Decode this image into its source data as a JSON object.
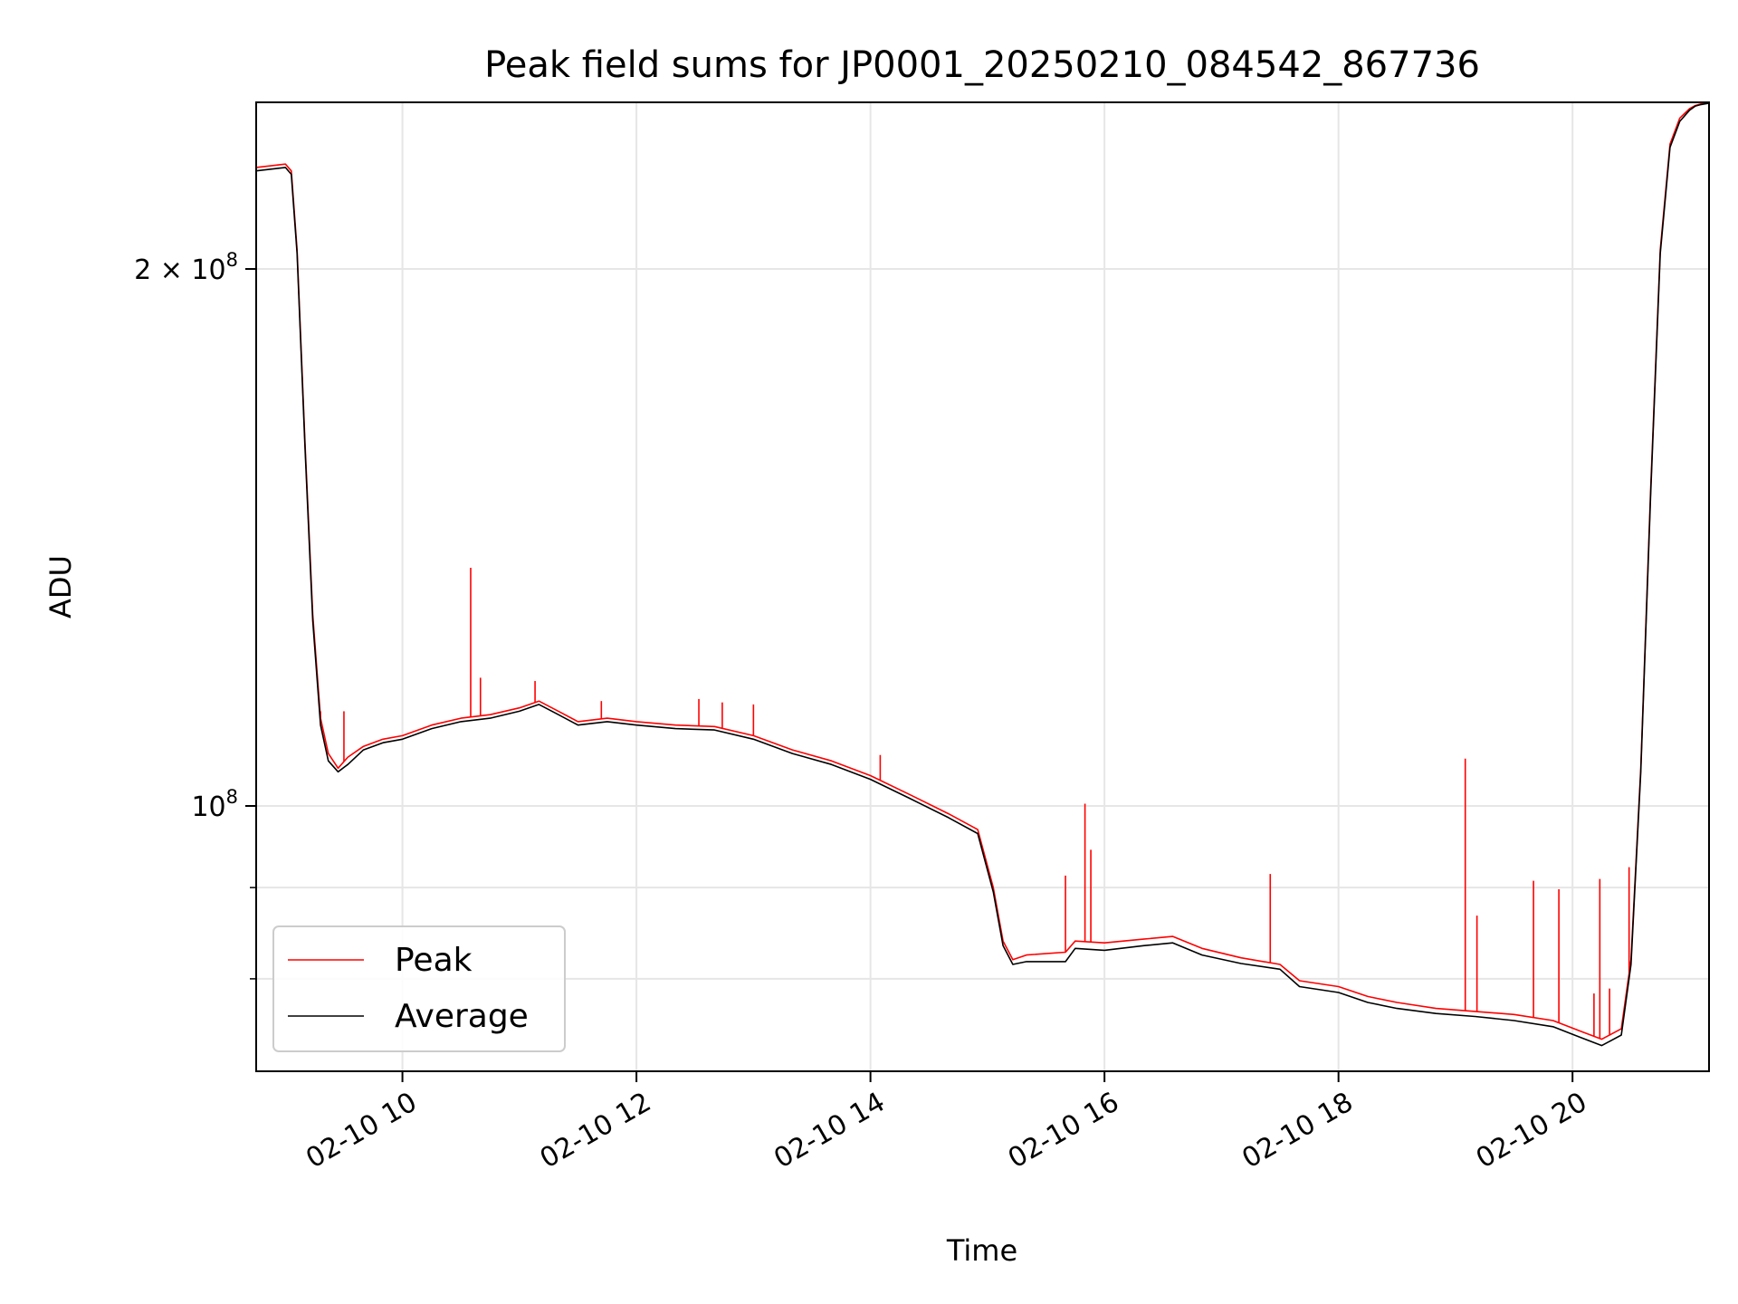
{
  "chart_data": {
    "type": "line",
    "title": "Peak field sums for JP0001_20250210_084542_867736",
    "xlabel": "Time",
    "ylabel": "ADU",
    "y_scale": "log",
    "xlim": [
      "02-10 08:45",
      "02-10 21:10"
    ],
    "ylim": [
      71000000,
      248000000
    ],
    "grid": true,
    "legend_position": "lower-left",
    "x_ticks": [
      {
        "value": "02-10 10:00",
        "label": "02-10 10"
      },
      {
        "value": "02-10 12:00",
        "label": "02-10 12"
      },
      {
        "value": "02-10 14:00",
        "label": "02-10 14"
      },
      {
        "value": "02-10 16:00",
        "label": "02-10 16"
      },
      {
        "value": "02-10 18:00",
        "label": "02-10 18"
      },
      {
        "value": "02-10 20:00",
        "label": "02-10 20"
      }
    ],
    "y_ticks": [
      {
        "value": 100000000,
        "base": "10",
        "exp": "8",
        "mantissa": ""
      },
      {
        "value": 200000000,
        "base": "10",
        "exp": "8",
        "mantissa": "2 × "
      }
    ],
    "y_minor_ticks": [
      80000000,
      90000000
    ],
    "series": [
      {
        "name": "Peak",
        "color": "#ff0000",
        "x": [
          "02-10 08:45",
          "02-10 09:00",
          "02-10 09:03",
          "02-10 09:06",
          "02-10 09:10",
          "02-10 09:14",
          "02-10 09:18",
          "02-10 09:22",
          "02-10 09:27",
          "02-10 09:32",
          "02-10 09:40",
          "02-10 09:50",
          "02-10 10:00",
          "02-10 10:15",
          "02-10 10:30",
          "02-10 10:45",
          "02-10 11:00",
          "02-10 11:10",
          "02-10 11:20",
          "02-10 11:30",
          "02-10 11:45",
          "02-10 12:00",
          "02-10 12:20",
          "02-10 12:40",
          "02-10 13:00",
          "02-10 13:20",
          "02-10 13:40",
          "02-10 14:00",
          "02-10 14:20",
          "02-10 14:40",
          "02-10 14:55",
          "02-10 15:03",
          "02-10 15:08",
          "02-10 15:13",
          "02-10 15:20",
          "02-10 15:40",
          "02-10 15:45",
          "02-10 16:00",
          "02-10 16:20",
          "02-10 16:35",
          "02-10 16:50",
          "02-10 17:10",
          "02-10 17:30",
          "02-10 17:40",
          "02-10 18:00",
          "02-10 18:15",
          "02-10 18:30",
          "02-10 18:50",
          "02-10 19:10",
          "02-10 19:30",
          "02-10 19:50",
          "02-10 20:05",
          "02-10 20:15",
          "02-10 20:20",
          "02-10 20:25",
          "02-10 20:30",
          "02-10 20:35",
          "02-10 20:40",
          "02-10 20:45",
          "02-10 20:50",
          "02-10 20:55",
          "02-10 21:00",
          "02-10 21:03",
          "02-10 21:06",
          "02-10 21:10"
        ],
        "y": [
          228000000,
          229000000,
          227000000,
          205000000,
          160000000,
          128000000,
          112000000,
          107000000,
          105000000,
          106500000,
          108000000,
          109000000,
          109500000,
          111000000,
          112000000,
          112500000,
          113500000,
          114500000,
          113000000,
          111500000,
          112000000,
          111500000,
          111000000,
          110800000,
          109500000,
          107500000,
          106000000,
          104000000,
          101500000,
          99000000,
          97000000,
          90000000,
          84000000,
          82000000,
          82500000,
          82800000,
          84000000,
          83800000,
          84200000,
          84500000,
          83200000,
          82200000,
          81500000,
          79800000,
          79200000,
          78200000,
          77600000,
          77000000,
          76700000,
          76400000,
          75800000,
          74700000,
          74000000,
          74500000,
          75000000,
          82000000,
          105000000,
          150000000,
          205000000,
          235000000,
          243000000,
          246000000,
          247000000,
          247500000,
          247800000
        ],
        "spikes": [
          {
            "x": "02-10 09:18",
            "y": 113000000
          },
          {
            "x": "02-10 09:30",
            "y": 113000000
          },
          {
            "x": "02-10 10:35",
            "y": 136000000
          },
          {
            "x": "02-10 10:40",
            "y": 118000000
          },
          {
            "x": "02-10 11:08",
            "y": 117500000
          },
          {
            "x": "02-10 11:42",
            "y": 114500000
          },
          {
            "x": "02-10 12:32",
            "y": 114800000
          },
          {
            "x": "02-10 12:44",
            "y": 114300000
          },
          {
            "x": "02-10 13:00",
            "y": 114000000
          },
          {
            "x": "02-10 14:05",
            "y": 106800000
          },
          {
            "x": "02-10 15:40",
            "y": 91400000
          },
          {
            "x": "02-10 15:50",
            "y": 100300000
          },
          {
            "x": "02-10 15:53",
            "y": 94500000
          },
          {
            "x": "02-10 17:25",
            "y": 91600000
          },
          {
            "x": "02-10 19:05",
            "y": 106300000
          },
          {
            "x": "02-10 19:11",
            "y": 86800000
          },
          {
            "x": "02-10 19:40",
            "y": 90800000
          },
          {
            "x": "02-10 19:53",
            "y": 89800000
          },
          {
            "x": "02-10 20:11",
            "y": 78500000
          },
          {
            "x": "02-10 20:14",
            "y": 91000000
          },
          {
            "x": "02-10 20:19",
            "y": 79000000
          },
          {
            "x": "02-10 20:29",
            "y": 92400000
          }
        ]
      },
      {
        "name": "Average",
        "color": "#000000",
        "x": [
          "02-10 08:45",
          "02-10 09:00",
          "02-10 09:03",
          "02-10 09:06",
          "02-10 09:10",
          "02-10 09:14",
          "02-10 09:18",
          "02-10 09:22",
          "02-10 09:27",
          "02-10 09:32",
          "02-10 09:40",
          "02-10 09:50",
          "02-10 10:00",
          "02-10 10:15",
          "02-10 10:30",
          "02-10 10:45",
          "02-10 11:00",
          "02-10 11:10",
          "02-10 11:20",
          "02-10 11:30",
          "02-10 11:45",
          "02-10 12:00",
          "02-10 12:20",
          "02-10 12:40",
          "02-10 13:00",
          "02-10 13:20",
          "02-10 13:40",
          "02-10 14:00",
          "02-10 14:20",
          "02-10 14:40",
          "02-10 14:55",
          "02-10 15:03",
          "02-10 15:08",
          "02-10 15:13",
          "02-10 15:20",
          "02-10 15:40",
          "02-10 15:45",
          "02-10 16:00",
          "02-10 16:20",
          "02-10 16:35",
          "02-10 16:50",
          "02-10 17:10",
          "02-10 17:30",
          "02-10 17:40",
          "02-10 18:00",
          "02-10 18:15",
          "02-10 18:30",
          "02-10 18:50",
          "02-10 19:10",
          "02-10 19:30",
          "02-10 19:50",
          "02-10 20:05",
          "02-10 20:15",
          "02-10 20:20",
          "02-10 20:25",
          "02-10 20:30",
          "02-10 20:35",
          "02-10 20:40",
          "02-10 20:45",
          "02-10 20:50",
          "02-10 20:55",
          "02-10 21:00",
          "02-10 21:03",
          "02-10 21:06",
          "02-10 21:10"
        ],
        "y": [
          227000000,
          228000000,
          226000000,
          204000000,
          159000000,
          127000000,
          111000000,
          106000000,
          104500000,
          105500000,
          107500000,
          108500000,
          109000000,
          110500000,
          111500000,
          112000000,
          113000000,
          114000000,
          112500000,
          111000000,
          111500000,
          111000000,
          110500000,
          110300000,
          109000000,
          107000000,
          105500000,
          103500000,
          101000000,
          98500000,
          96500000,
          89500000,
          83500000,
          81500000,
          81800000,
          81800000,
          83200000,
          83000000,
          83500000,
          83800000,
          82500000,
          81600000,
          81000000,
          79200000,
          78600000,
          77600000,
          77000000,
          76500000,
          76200000,
          75800000,
          75200000,
          74100000,
          73400000,
          73900000,
          74400000,
          81500000,
          104500000,
          149000000,
          204000000,
          234000000,
          242000000,
          245500000,
          246800000,
          247300000,
          247700000
        ]
      }
    ]
  }
}
